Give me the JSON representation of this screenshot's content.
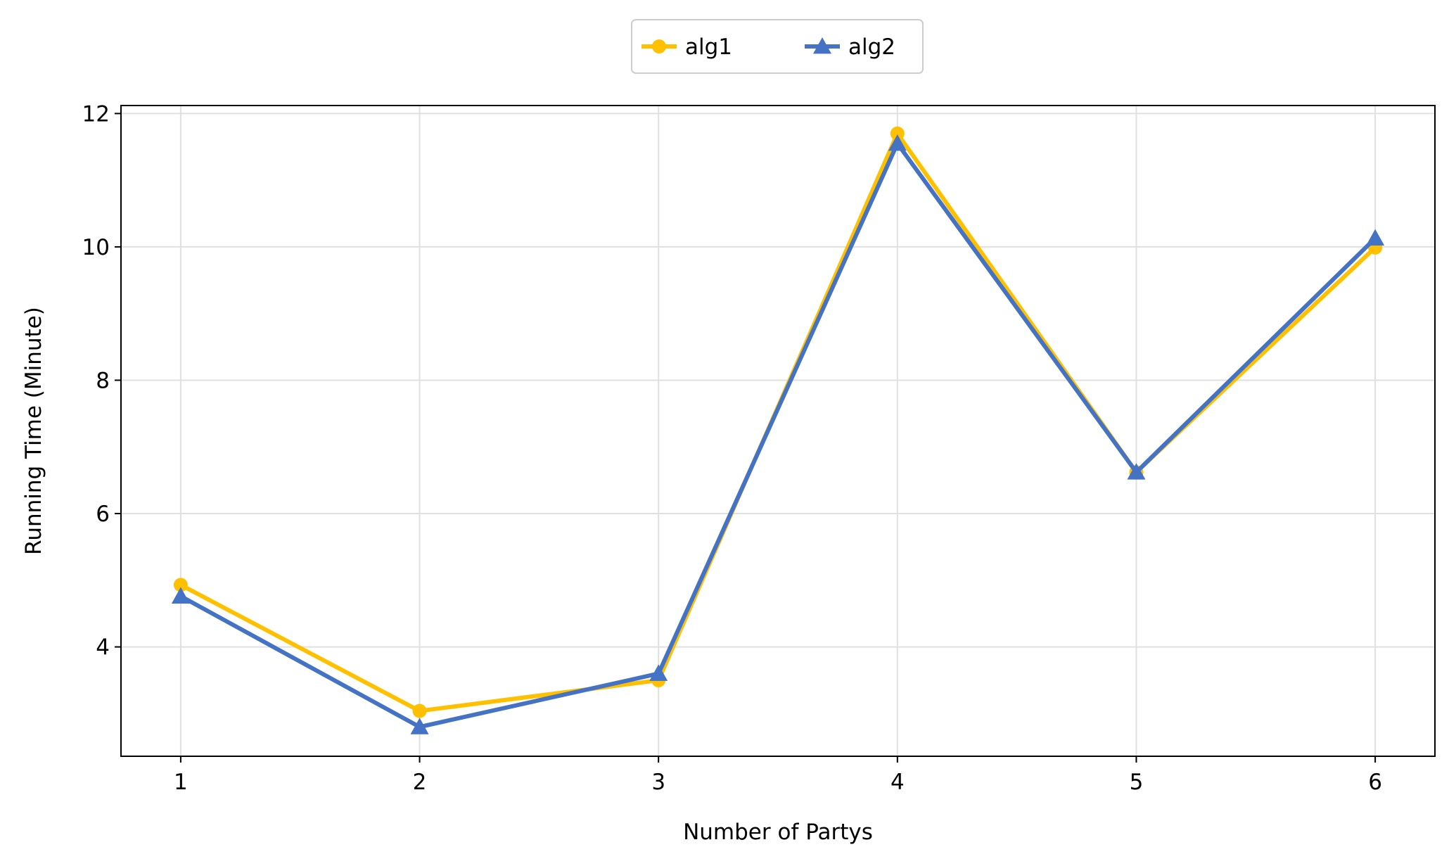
{
  "chart_data": {
    "type": "line",
    "xlabel": "Number of Partys",
    "ylabel": "Running Time (Minute)",
    "x": [
      1,
      2,
      3,
      4,
      5,
      6
    ],
    "xticks": [
      "1",
      "2",
      "3",
      "4",
      "5",
      "6"
    ],
    "yticks": [
      "4",
      "6",
      "8",
      "10",
      "12"
    ],
    "xlim": [
      0.75,
      6.25
    ],
    "ylim": [
      2.36,
      12.12
    ],
    "grid": true,
    "legend_position": "top-center",
    "series": [
      {
        "name": "alg1",
        "color": "#FFC000",
        "marker": "circle",
        "values": [
          4.93,
          3.04,
          3.5,
          11.7,
          6.62,
          9.99
        ]
      },
      {
        "name": "alg2",
        "color": "#4472C4",
        "marker": "triangle",
        "values": [
          4.76,
          2.8,
          3.6,
          11.55,
          6.62,
          10.13
        ]
      }
    ]
  }
}
